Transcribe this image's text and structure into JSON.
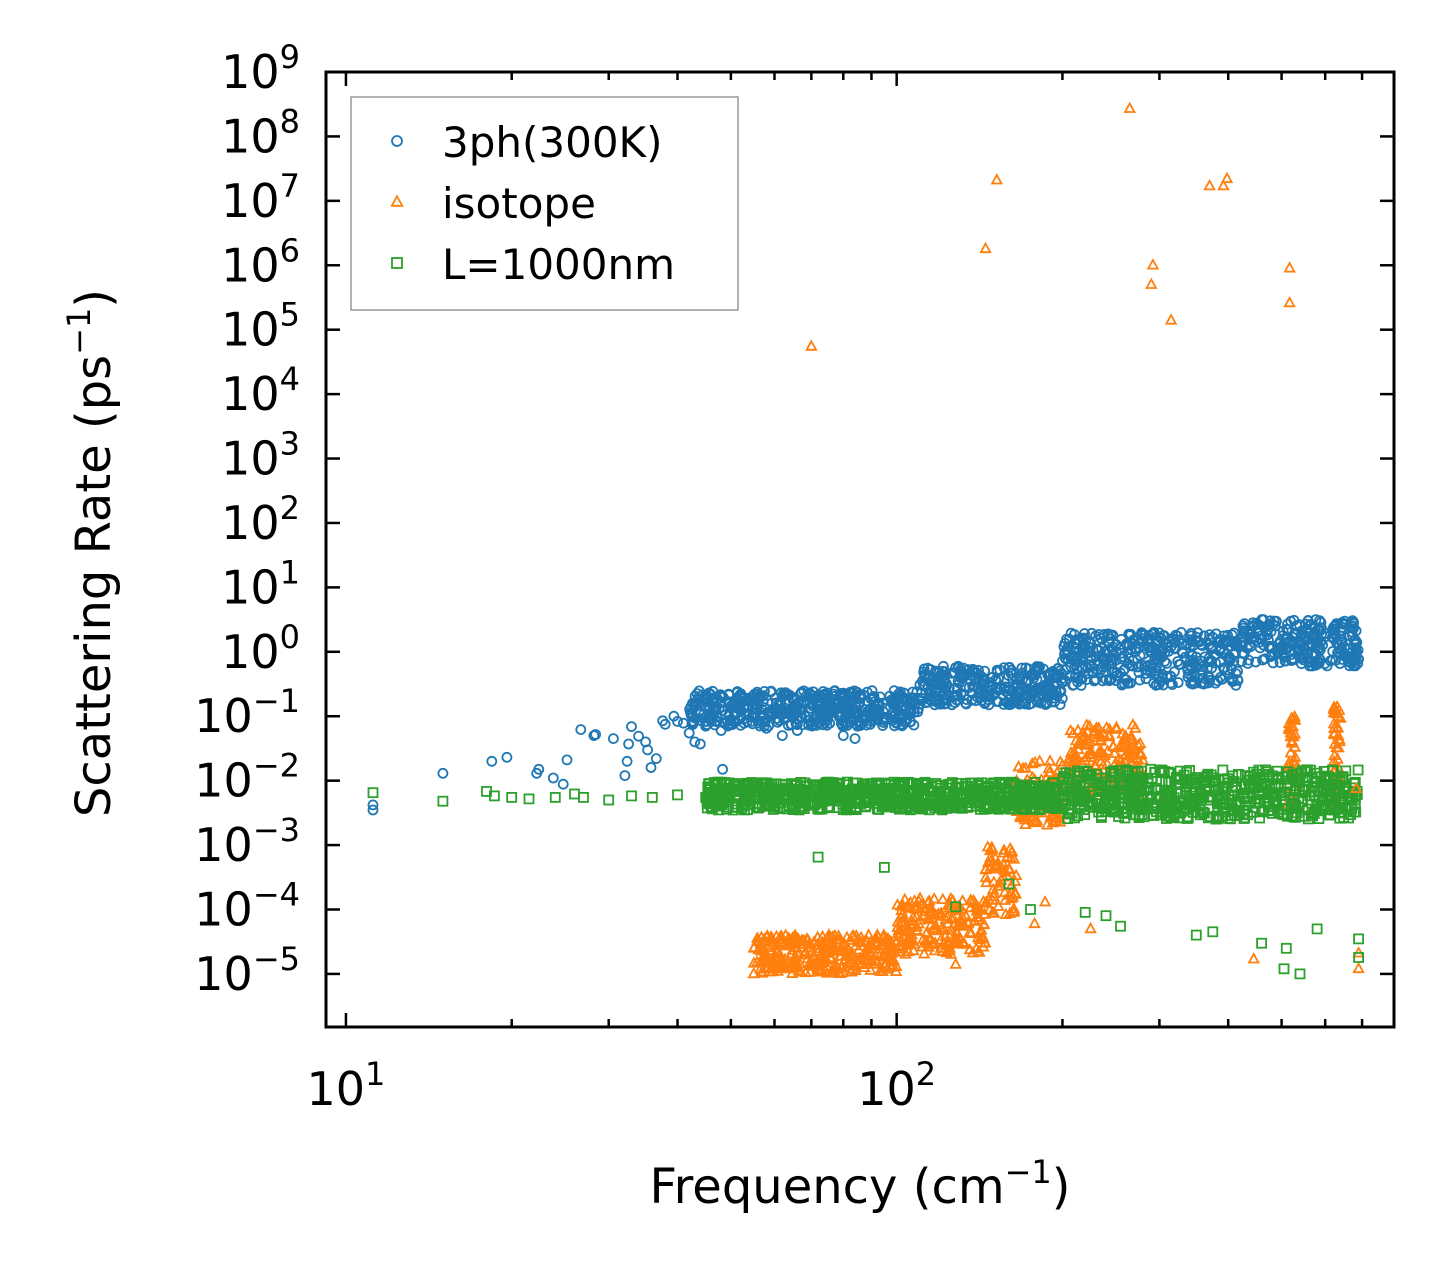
{
  "chart_data": {
    "type": "scatter",
    "xscale": "log",
    "yscale": "log",
    "xlabel": "Frequency (cm⁻¹)",
    "ylabel": "Scattering Rate (ps⁻¹)",
    "xlim": [
      9.2,
      800
    ],
    "ylim": [
      1.5e-06,
      1000000000.0
    ],
    "x_ticks": [
      {
        "value": 10,
        "base": "10",
        "exp": "1"
      },
      {
        "value": 100,
        "base": "10",
        "exp": "2"
      }
    ],
    "y_ticks": [
      {
        "value": 1000000000.0,
        "base": "10",
        "exp": "9"
      },
      {
        "value": 100000000.0,
        "base": "10",
        "exp": "8"
      },
      {
        "value": 10000000.0,
        "base": "10",
        "exp": "7"
      },
      {
        "value": 1000000.0,
        "base": "10",
        "exp": "6"
      },
      {
        "value": 100000.0,
        "base": "10",
        "exp": "5"
      },
      {
        "value": 10000.0,
        "base": "10",
        "exp": "4"
      },
      {
        "value": 1000.0,
        "base": "10",
        "exp": "3"
      },
      {
        "value": 100.0,
        "base": "10",
        "exp": "2"
      },
      {
        "value": 10.0,
        "base": "10",
        "exp": "1"
      },
      {
        "value": 1.0,
        "base": "10",
        "exp": "0"
      },
      {
        "value": 0.1,
        "base": "10",
        "exp": "−1"
      },
      {
        "value": 0.01,
        "base": "10",
        "exp": "−2"
      },
      {
        "value": 0.001,
        "base": "10",
        "exp": "−3"
      },
      {
        "value": 0.0001,
        "base": "10",
        "exp": "−4"
      },
      {
        "value": 1e-05,
        "base": "10",
        "exp": "−5"
      }
    ],
    "legend_position": "top-left",
    "series": [
      {
        "name": "3ph(300K)",
        "marker": "circle",
        "color": "#1f77b4",
        "points": [
          [
            11.2,
            0.0035
          ],
          [
            11.2,
            0.0042
          ],
          [
            15.0,
            0.013
          ],
          [
            18.4,
            0.02
          ],
          [
            19.6,
            0.023
          ],
          [
            22.2,
            0.013
          ],
          [
            22.4,
            0.015
          ],
          [
            23.8,
            0.011
          ],
          [
            24.8,
            0.0088
          ],
          [
            25.2,
            0.021
          ],
          [
            26.7,
            0.062
          ],
          [
            28.2,
            0.05
          ],
          [
            28.4,
            0.052
          ],
          [
            30.6,
            0.045
          ],
          [
            32.1,
            0.012
          ],
          [
            32.4,
            0.02
          ],
          [
            32.6,
            0.037
          ],
          [
            33.0,
            0.069
          ],
          [
            34.0,
            0.049
          ],
          [
            35.0,
            0.04
          ],
          [
            35.3,
            0.03
          ],
          [
            35.8,
            0.016
          ],
          [
            36.6,
            0.022
          ],
          [
            37.6,
            0.085
          ],
          [
            38.0,
            0.075
          ],
          [
            39.4,
            0.1
          ],
          [
            40.0,
            0.083
          ],
          [
            41.0,
            0.078
          ],
          [
            42.0,
            0.055
          ],
          [
            43.0,
            0.04
          ],
          [
            44.0,
            0.037
          ],
          [
            45.0,
            0.07
          ],
          [
            46.5,
            0.12
          ],
          [
            47.2,
            0.1
          ],
          [
            48.0,
            0.06
          ],
          [
            48.3,
            0.015
          ],
          [
            50.0,
            0.085
          ],
          [
            52.0,
            0.13
          ],
          [
            55.0,
            0.1
          ],
          [
            58.0,
            0.065
          ],
          [
            62.0,
            0.05
          ],
          [
            66.0,
            0.06
          ],
          [
            70.0,
            0.08
          ],
          [
            75.0,
            0.1
          ],
          [
            80.0,
            0.05
          ],
          [
            84.0,
            0.045
          ]
        ],
        "bands": [
          {
            "x_start": 42,
            "x_end": 110,
            "y_low": 0.07,
            "y_high": 0.25
          },
          {
            "x_start": 110,
            "x_end": 200,
            "y_low": 0.15,
            "y_high": 0.6
          },
          {
            "x_start": 200,
            "x_end": 420,
            "y_low": 0.3,
            "y_high": 2.0
          },
          {
            "x_start": 420,
            "x_end": 690,
            "y_low": 0.6,
            "y_high": 3.2
          }
        ]
      },
      {
        "name": "isotope",
        "marker": "triangle",
        "color": "#ff7f0e",
        "points": [
          [
            70,
            55000
          ],
          [
            145,
            1800000
          ],
          [
            152,
            21000000
          ],
          [
            265,
            270000000
          ],
          [
            292,
            1000000
          ],
          [
            290,
            500000
          ],
          [
            315,
            140000
          ],
          [
            370,
            17000000
          ],
          [
            392,
            17000000
          ],
          [
            398,
            22000000
          ],
          [
            517,
            900000
          ],
          [
            517,
            260000
          ],
          [
            55,
            1e-05
          ],
          [
            60,
            1.2e-05
          ],
          [
            72,
            1.1e-05
          ],
          [
            88,
            1.8e-05
          ],
          [
            105,
            2.2e-05
          ],
          [
            128,
            1.4e-05
          ],
          [
            178,
            6e-05
          ],
          [
            186,
            0.00013
          ],
          [
            225,
            5e-05
          ],
          [
            445,
            1.7e-05
          ],
          [
            690,
            1.2e-05
          ],
          [
            690,
            2.1e-05
          ],
          [
            683,
            0.0075
          ]
        ],
        "bands": [
          {
            "x_start": 55,
            "x_end": 100,
            "y_low": 1e-05,
            "y_high": 4e-05
          },
          {
            "x_start": 100,
            "x_end": 145,
            "y_low": 2e-05,
            "y_high": 0.00015
          },
          {
            "x_start": 145,
            "x_end": 165,
            "y_low": 8e-05,
            "y_high": 0.001
          },
          {
            "x_start": 165,
            "x_end": 200,
            "y_low": 0.002,
            "y_high": 0.02
          },
          {
            "x_start": 205,
            "x_end": 280,
            "y_low": 0.006,
            "y_high": 0.075
          },
          {
            "x_start": 515,
            "x_end": 530,
            "y_low": 0.004,
            "y_high": 0.12
          },
          {
            "x_start": 620,
            "x_end": 640,
            "y_low": 0.004,
            "y_high": 0.14
          }
        ]
      },
      {
        "name": "L=1000nm",
        "marker": "square",
        "color": "#2ca02c",
        "points": [
          [
            11.2,
            0.0065
          ],
          [
            15.0,
            0.0048
          ],
          [
            18.0,
            0.0068
          ],
          [
            18.6,
            0.0058
          ],
          [
            20.0,
            0.0055
          ],
          [
            21.5,
            0.0052
          ],
          [
            24.0,
            0.0055
          ],
          [
            26.0,
            0.0062
          ],
          [
            27.0,
            0.0055
          ],
          [
            30.0,
            0.005
          ],
          [
            33.0,
            0.0058
          ],
          [
            36.0,
            0.0055
          ],
          [
            40.0,
            0.006
          ],
          [
            45.0,
            0.0055
          ],
          [
            72.0,
            0.00065
          ],
          [
            95.0,
            0.00045
          ],
          [
            128.0,
            0.00011
          ],
          [
            160.0,
            0.00025
          ],
          [
            175.0,
            0.0001
          ],
          [
            220.0,
            9e-05
          ],
          [
            240.0,
            8e-05
          ],
          [
            255.0,
            5.5e-05
          ],
          [
            350.0,
            4e-05
          ],
          [
            375.0,
            4.5e-05
          ],
          [
            460.0,
            3e-05
          ],
          [
            505.0,
            1.2e-05
          ],
          [
            510.0,
            2.5e-05
          ],
          [
            540.0,
            1e-05
          ],
          [
            580.0,
            5e-05
          ],
          [
            690.0,
            3.5e-05
          ],
          [
            690.0,
            1.8e-05
          ]
        ],
        "bands": [
          {
            "x_start": 45,
            "x_end": 200,
            "y_low": 0.0035,
            "y_high": 0.0095
          },
          {
            "x_start": 200,
            "x_end": 690,
            "y_low": 0.0025,
            "y_high": 0.015
          }
        ]
      }
    ]
  }
}
